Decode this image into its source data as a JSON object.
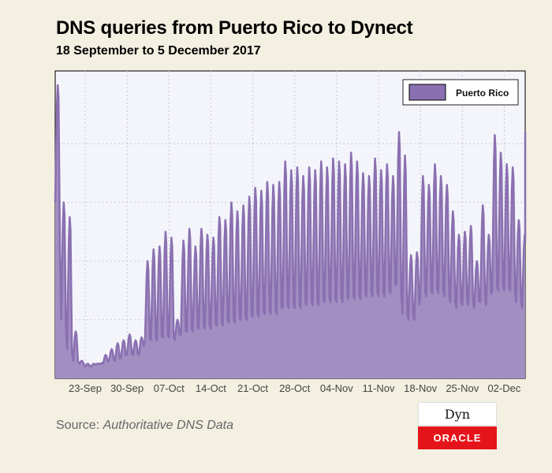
{
  "title": "DNS queries from Puerto Rico to Dynect",
  "subtitle": "18 September to 5 December 2017",
  "source_label": "Source:",
  "source_value": "Authoritative DNS Data",
  "logo_top_text": "Dyn",
  "logo_bottom_text": "ORACLE",
  "colors": {
    "background": "#f3efe1",
    "plot_background": "#f4f4fb",
    "series_fill": "#a28fc2",
    "series_line": "#8a70b0",
    "grid": "#c8c8d8"
  },
  "chart_data": {
    "type": "area",
    "title": "DNS queries from Puerto Rico to Dynect",
    "subtitle": "18 September to 5 December 2017",
    "xlabel": "",
    "ylabel": "",
    "y_axis_labels_shown": false,
    "grid": true,
    "legend_position": "top-right",
    "x_tick_labels": [
      "23-Sep",
      "30-Sep",
      "07-Oct",
      "14-Oct",
      "21-Oct",
      "28-Oct",
      "04-Nov",
      "11-Nov",
      "18-Nov",
      "25-Nov",
      "02-Dec"
    ],
    "x_range_days": [
      0,
      78.5
    ],
    "ylim": [
      0,
      100
    ],
    "series": [
      {
        "name": "Puerto Rico",
        "peaks": [
          100,
          60,
          55,
          16,
          6,
          5,
          5,
          5,
          8,
          10,
          12,
          13,
          15,
          13,
          14,
          40,
          44,
          45,
          50,
          48,
          20,
          47,
          51,
          45,
          51,
          49,
          48,
          55,
          54,
          60,
          57,
          59,
          62,
          65,
          64,
          67,
          66,
          67,
          74,
          71,
          72,
          69,
          72,
          71,
          74,
          72,
          75,
          74,
          73,
          77,
          74,
          70,
          69,
          75,
          71,
          73,
          69,
          84,
          76,
          42,
          43,
          69,
          66,
          73,
          69,
          66,
          57,
          49,
          50,
          52,
          40,
          59,
          49,
          83,
          77,
          73,
          72,
          54,
          49,
          78
        ],
        "troughs": [
          60,
          20,
          10,
          6,
          5,
          4,
          4,
          5,
          5,
          6,
          6,
          7,
          8,
          8,
          8,
          13,
          13,
          13,
          14,
          14,
          13,
          15,
          16,
          16,
          17,
          17,
          17,
          18,
          18,
          19,
          19,
          20,
          20,
          21,
          21,
          22,
          22,
          22,
          24,
          24,
          24,
          24,
          25,
          25,
          25,
          26,
          26,
          26,
          26,
          27,
          27,
          27,
          28,
          28,
          28,
          28,
          29,
          32,
          22,
          20,
          20,
          28,
          28,
          29,
          29,
          28,
          26,
          24,
          25,
          25,
          24,
          26,
          25,
          30,
          30,
          30,
          30,
          26,
          24,
          80
        ]
      }
    ]
  }
}
